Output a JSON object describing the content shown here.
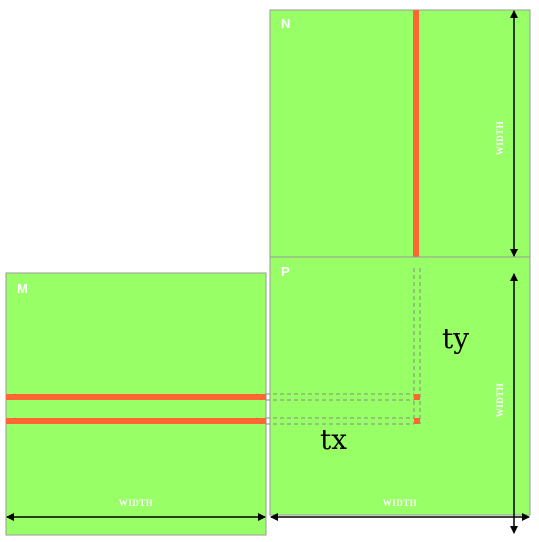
{
  "colors": {
    "matrix_fill": "#99ff66",
    "matrix_border": "#999999",
    "highlight": "#ff6633",
    "dashed": "#888888",
    "arrow": "#000000"
  },
  "matrices": {
    "m_label": "M",
    "n_label": "N",
    "p_label": "P"
  },
  "dimensions": {
    "m_width_label": "WIDTH",
    "p_width_label": "WIDTH",
    "n_height_label": "WIDTH",
    "p_height_label": "WIDTH"
  },
  "indices": {
    "tx_label": "tx",
    "ty_label": "ty"
  }
}
